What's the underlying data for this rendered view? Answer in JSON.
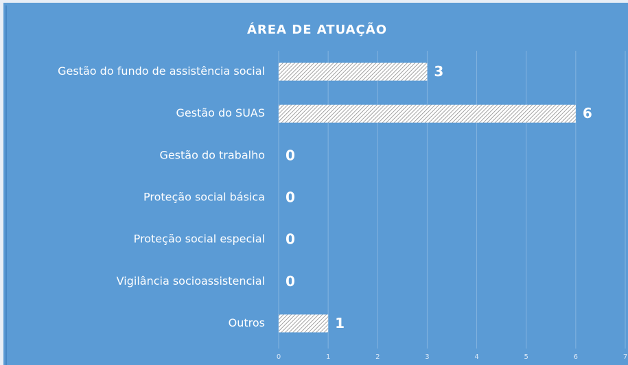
{
  "chart_data": {
    "type": "bar",
    "orientation": "horizontal",
    "title": "ÁREA DE ATUAÇÃO",
    "categories": [
      "Gestão do fundo de assistência social",
      "Gestão do SUAS",
      "Gestão do trabalho",
      "Proteção social básica",
      "Proteção social especial",
      "Vigilância socioassistencial",
      "Outros"
    ],
    "values": [
      3,
      6,
      0,
      0,
      0,
      0,
      1
    ],
    "color": "#ffffff",
    "background": "#5b9bd5",
    "xlim": [
      0,
      7
    ],
    "xticks": [
      0,
      1,
      2,
      3,
      4,
      5,
      6,
      7
    ],
    "grid": true
  }
}
